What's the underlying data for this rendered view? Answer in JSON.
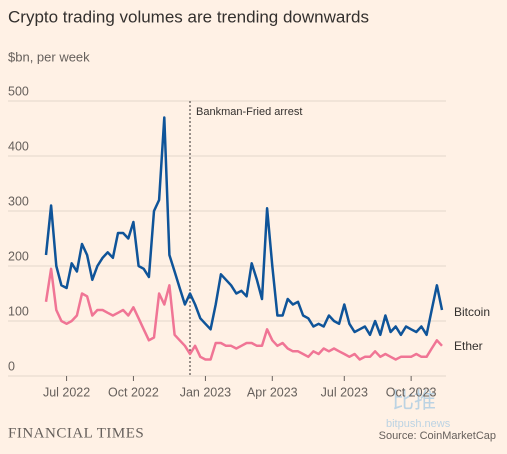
{
  "chart_data": {
    "type": "line",
    "title": "Crypto trading volumes are trending downwards",
    "subtitle": "$bn, per week",
    "categories": [
      null,
      null,
      null,
      null,
      "Jul 2022",
      null,
      null,
      null,
      null,
      null,
      null,
      null,
      null,
      null,
      null,
      null,
      null,
      "Oct 2022",
      null,
      null,
      null,
      null,
      null,
      null,
      null,
      null,
      null,
      null,
      null,
      null,
      null,
      "Jan 2023",
      null,
      null,
      null,
      null,
      null,
      null,
      null,
      null,
      null,
      null,
      null,
      null,
      "Apr 2023",
      null,
      null,
      null,
      null,
      null,
      null,
      null,
      null,
      null,
      null,
      null,
      null,
      null,
      "Jul 2023",
      null,
      null,
      null,
      null,
      null,
      null,
      null,
      null,
      null,
      null,
      null,
      null,
      "Oct 2023",
      null,
      null,
      null,
      null,
      null,
      null
    ],
    "series": [
      {
        "name": "Bitcoin",
        "color": "#0f5499",
        "values": [
          220,
          310,
          200,
          165,
          160,
          205,
          190,
          240,
          220,
          175,
          200,
          215,
          225,
          215,
          260,
          260,
          250,
          280,
          200,
          195,
          180,
          300,
          320,
          470,
          220,
          190,
          160,
          130,
          150,
          130,
          105,
          95,
          85,
          130,
          185,
          175,
          165,
          150,
          155,
          145,
          205,
          175,
          140,
          305,
          200,
          110,
          110,
          140,
          130,
          135,
          110,
          105,
          90,
          95,
          90,
          110,
          100,
          95,
          130,
          95,
          80,
          85,
          90,
          75,
          100,
          75,
          110,
          80,
          90,
          75,
          90,
          85,
          80,
          90,
          75,
          120,
          165,
          120
        ]
      },
      {
        "name": "Ether",
        "color": "#f07595",
        "values": [
          135,
          195,
          120,
          100,
          95,
          100,
          110,
          150,
          145,
          110,
          120,
          120,
          115,
          110,
          115,
          120,
          110,
          125,
          105,
          85,
          65,
          70,
          150,
          130,
          165,
          75,
          65,
          55,
          40,
          55,
          35,
          30,
          30,
          60,
          60,
          55,
          55,
          50,
          55,
          60,
          60,
          55,
          55,
          85,
          65,
          55,
          60,
          50,
          45,
          45,
          40,
          35,
          45,
          40,
          50,
          45,
          50,
          45,
          40,
          35,
          40,
          30,
          35,
          35,
          45,
          35,
          40,
          35,
          30,
          35,
          35,
          35,
          40,
          35,
          35,
          50,
          65,
          55
        ]
      }
    ],
    "ylim": [
      0,
      500
    ],
    "yticks": [
      0,
      100,
      200,
      300,
      400,
      500
    ],
    "grid": true,
    "annotations": [
      {
        "text": "Bankman-Fried arrest",
        "index": 28
      }
    ],
    "source": "Source: CoinMarketCap",
    "brand": "FINANCIAL TIMES",
    "watermark": [
      "比推",
      "bitpush.news"
    ]
  }
}
